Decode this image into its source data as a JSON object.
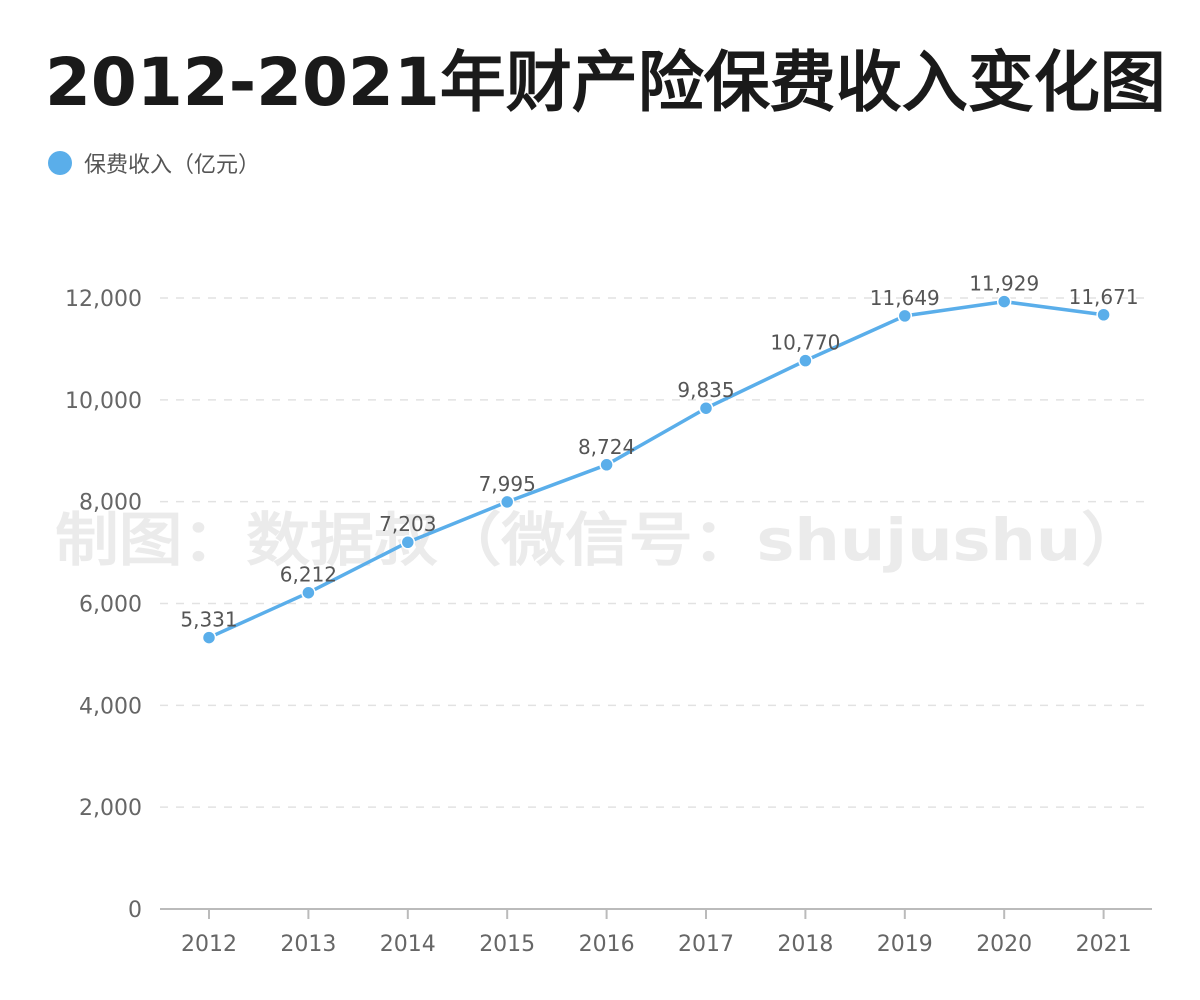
{
  "colors": {
    "series": "#5aaeea",
    "axis_text": "#666666",
    "label_text": "#555555",
    "grid": "#e2e2e2",
    "axis_line": "#bbbbbb",
    "title": "#1a1a1a",
    "watermark": "#ebebeb"
  },
  "watermark": "制图：数据叔（微信号：shujushu）",
  "chart_data": {
    "type": "line",
    "title": "2012-2021年财产险保费收入变化图",
    "xlabel": "",
    "ylabel": "",
    "categories": [
      "2012",
      "2013",
      "2014",
      "2015",
      "2016",
      "2017",
      "2018",
      "2019",
      "2020",
      "2021"
    ],
    "series": [
      {
        "name": "保费收入（亿元）",
        "values": [
          5331,
          6212,
          7203,
          7995,
          8724,
          9835,
          10770,
          11649,
          11929,
          11671
        ],
        "labels": [
          "5,331",
          "6,212",
          "7,203",
          "7,995",
          "8,724",
          "9,835",
          "10,770",
          "11,649",
          "11,929",
          "11,671"
        ]
      }
    ],
    "ylim": [
      0,
      12000
    ],
    "yticks": [
      0,
      2000,
      4000,
      6000,
      8000,
      10000,
      12000
    ],
    "ytick_labels": [
      "0",
      "2,000",
      "4,000",
      "6,000",
      "8,000",
      "10,000",
      "12,000"
    ],
    "grid": true,
    "grid_style": "dashed",
    "legend_position": "top-left",
    "data_labels": true
  }
}
